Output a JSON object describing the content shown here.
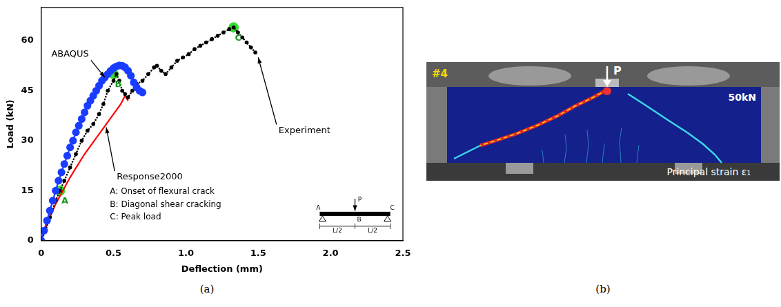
{
  "chart_data": {
    "type": "line",
    "x_label": "Deflection (mm)",
    "y_label": "Load (kN)",
    "xlim": [
      0,
      2.5
    ],
    "xticks": [
      0,
      0.5,
      {
        "value": 1,
        "label": "1.0"
      },
      1.5,
      {
        "value": 2,
        "label": "2.0"
      },
      2.5
    ],
    "ylim": [
      0,
      70
    ],
    "yticks": [
      0,
      15,
      30,
      45,
      60
    ],
    "grid": false,
    "series": [
      {
        "name": "ABAQUS",
        "color": "#1a3cff",
        "marker": "circle",
        "line_style": "solid",
        "x": [
          0,
          0.02,
          0.04,
          0.06,
          0.08,
          0.1,
          0.12,
          0.14,
          0.16,
          0.18,
          0.2,
          0.22,
          0.24,
          0.26,
          0.28,
          0.3,
          0.32,
          0.34,
          0.36,
          0.38,
          0.4,
          0.42,
          0.44,
          0.46,
          0.48,
          0.5,
          0.52,
          0.54,
          0.56,
          0.58,
          0.6,
          0.62,
          0.64,
          0.66,
          0.68,
          0.7
        ],
        "values": [
          0,
          3,
          6,
          9,
          12,
          15,
          18,
          20.5,
          23,
          25.5,
          28,
          30,
          32.5,
          34.5,
          36.5,
          38.5,
          40.5,
          42,
          43.5,
          45,
          46.5,
          48,
          49,
          50,
          51,
          51.8,
          52.3,
          52.6,
          52.5,
          52,
          51,
          49.5,
          47.5,
          46,
          45,
          44.5
        ]
      },
      {
        "name": "Experiment",
        "color": "#000000",
        "marker": "dot",
        "line_style": "dotted",
        "x": [
          0,
          0.03,
          0.06,
          0.1,
          0.13,
          0.16,
          0.2,
          0.24,
          0.28,
          0.32,
          0.36,
          0.4,
          0.43,
          0.46,
          0.5,
          0.52,
          0.54,
          0.56,
          0.58,
          0.6,
          0.63,
          0.66,
          0.7,
          0.74,
          0.78,
          0.8,
          0.83,
          0.86,
          0.9,
          0.94,
          0.98,
          1.02,
          1.06,
          1.1,
          1.14,
          1.18,
          1.22,
          1.26,
          1.3,
          1.33,
          1.36,
          1.39,
          1.42,
          1.45,
          1.48
        ],
        "values": [
          0,
          3,
          7,
          12,
          15,
          18,
          22,
          26,
          30,
          33,
          35,
          38,
          41,
          45,
          48,
          50,
          48,
          45,
          44,
          43,
          45,
          47,
          48,
          50,
          52,
          52.5,
          51,
          50,
          52,
          54,
          55,
          56,
          57.5,
          58.5,
          59.5,
          60.5,
          61.5,
          62.5,
          63.5,
          64,
          62.5,
          61,
          59.5,
          58,
          56.5
        ]
      },
      {
        "name": "Response2000",
        "color": "#ff0000",
        "marker": "none",
        "line_style": "solid",
        "x": [
          0,
          0.05,
          0.1,
          0.15,
          0.2,
          0.25,
          0.3,
          0.35,
          0.4,
          0.45,
          0.5,
          0.55,
          0.58,
          0.6
        ],
        "values": [
          0,
          6,
          11,
          15,
          19,
          22.5,
          26,
          29,
          32,
          35,
          38,
          41,
          43.5,
          42
        ]
      }
    ],
    "annotations": [
      {
        "text": "ABAQUS",
        "x": 0.2,
        "y": 56,
        "arrow_x": 0.44,
        "arrow_y": 49
      },
      {
        "text": "Response2000",
        "x": 0.75,
        "y": 19,
        "arrow_x": 0.45,
        "arrow_y": 34
      },
      {
        "text": "Experiment",
        "x": 1.82,
        "y": 33,
        "arrow_x": 1.5,
        "arrow_y": 55
      }
    ],
    "points": [
      {
        "label": "A",
        "x": 0.13,
        "y": 15,
        "color": "#33dd33"
      },
      {
        "label": "B",
        "x": 0.5,
        "y": 50,
        "color": "#33dd33"
      },
      {
        "label": "C",
        "x": 1.33,
        "y": 64,
        "color": "#33dd33"
      }
    ],
    "key": [
      "A: Onset of flexural crack",
      "B: Diagonal shear cracking",
      "C: Peak load"
    ],
    "inset": {
      "load_label": "P",
      "node_labels": [
        "A",
        "B",
        "C"
      ],
      "span_labels": [
        "L/2",
        "L/2"
      ]
    }
  },
  "panel_b": {
    "badge": "#4",
    "load_label": "P",
    "load_value": "50kN",
    "field_label": "Principal strain ε₁"
  },
  "captions": [
    "(a)",
    "(b)"
  ]
}
